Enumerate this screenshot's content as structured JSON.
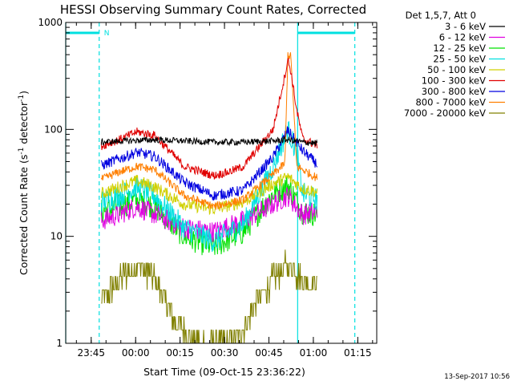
{
  "chart_data": {
    "type": "line",
    "title": "HESSI Observing Summary Count Rates, Corrected",
    "xlabel": "Start Time (09-Oct-15 23:36:22)",
    "ylabel": "Corrected Count Rate (s",
    "ylabel_sup1": "-1",
    "ylabel_mid": " detector",
    "ylabel_sup2": "-1",
    "ylabel_end": ")",
    "y_scale": "log",
    "ylim": [
      1,
      1000
    ],
    "xlim_minutes": [
      0,
      105
    ],
    "x_ticks": [
      {
        "label": "23:45",
        "minute": 8.6
      },
      {
        "label": "00:00",
        "minute": 23.6
      },
      {
        "label": "00:15",
        "minute": 38.6
      },
      {
        "label": "00:30",
        "minute": 53.6
      },
      {
        "label": "00:45",
        "minute": 68.6
      },
      {
        "label": "01:00",
        "minute": 83.6
      },
      {
        "label": "01:15",
        "minute": 98.6
      }
    ],
    "y_ticks": [
      {
        "label": "1",
        "value": 1
      },
      {
        "label": "10",
        "value": 10
      },
      {
        "label": "100",
        "value": 100
      },
      {
        "label": "1000",
        "value": 1000
      }
    ],
    "legend_header": "Det 1,5,7, Att 0",
    "legend_position": "right",
    "series": [
      {
        "name": "3 - 6 keV",
        "color": "#000000",
        "points": [
          [
            12,
            76
          ],
          [
            20,
            78
          ],
          [
            30,
            80
          ],
          [
            40,
            78
          ],
          [
            50,
            76
          ],
          [
            60,
            76
          ],
          [
            70,
            78
          ],
          [
            75,
            80
          ],
          [
            80,
            76
          ],
          [
            85,
            74
          ]
        ]
      },
      {
        "name": "6 - 12 keV",
        "color": "#e000e0",
        "points": [
          [
            12,
            14
          ],
          [
            18,
            16
          ],
          [
            24,
            19
          ],
          [
            30,
            16
          ],
          [
            40,
            12
          ],
          [
            50,
            11
          ],
          [
            60,
            14
          ],
          [
            70,
            20
          ],
          [
            75,
            24
          ],
          [
            80,
            16
          ],
          [
            85,
            17
          ]
        ]
      },
      {
        "name": "12 - 25 keV",
        "color": "#00e000",
        "points": [
          [
            12,
            17
          ],
          [
            18,
            19
          ],
          [
            24,
            22
          ],
          [
            30,
            19
          ],
          [
            40,
            10
          ],
          [
            50,
            8
          ],
          [
            60,
            11
          ],
          [
            70,
            25
          ],
          [
            75,
            30
          ],
          [
            80,
            17
          ],
          [
            85,
            16
          ]
        ]
      },
      {
        "name": "25 - 50 keV",
        "color": "#00e0e0",
        "points": [
          [
            12,
            21
          ],
          [
            18,
            24
          ],
          [
            24,
            29
          ],
          [
            30,
            24
          ],
          [
            40,
            12
          ],
          [
            50,
            9
          ],
          [
            60,
            13
          ],
          [
            70,
            45
          ],
          [
            75,
            100
          ],
          [
            78,
            60
          ],
          [
            80,
            25
          ],
          [
            85,
            22
          ]
        ]
      },
      {
        "name": "50 - 100 keV",
        "color": "#d0d000",
        "points": [
          [
            12,
            25
          ],
          [
            18,
            29
          ],
          [
            24,
            33
          ],
          [
            30,
            29
          ],
          [
            40,
            20
          ],
          [
            50,
            18
          ],
          [
            60,
            21
          ],
          [
            70,
            31
          ],
          [
            75,
            36
          ],
          [
            80,
            28
          ],
          [
            85,
            26
          ]
        ]
      },
      {
        "name": "100 - 300 keV",
        "color": "#e00000",
        "points": [
          [
            12,
            70
          ],
          [
            18,
            80
          ],
          [
            24,
            95
          ],
          [
            30,
            88
          ],
          [
            40,
            45
          ],
          [
            50,
            37
          ],
          [
            55,
            40
          ],
          [
            60,
            45
          ],
          [
            70,
            100
          ],
          [
            74,
            320
          ],
          [
            75,
            450
          ],
          [
            76,
            350
          ],
          [
            78,
            150
          ],
          [
            80,
            82
          ],
          [
            85,
            70
          ]
        ]
      },
      {
        "name": "300 - 800 keV",
        "color": "#0000e0",
        "points": [
          [
            12,
            46
          ],
          [
            18,
            53
          ],
          [
            24,
            61
          ],
          [
            30,
            56
          ],
          [
            40,
            32
          ],
          [
            50,
            24
          ],
          [
            60,
            27
          ],
          [
            70,
            55
          ],
          [
            75,
            98
          ],
          [
            80,
            63
          ],
          [
            85,
            47
          ]
        ]
      },
      {
        "name": "800 - 7000 keV",
        "color": "#ff7f00",
        "points": [
          [
            12,
            34
          ],
          [
            18,
            40
          ],
          [
            24,
            45
          ],
          [
            30,
            42
          ],
          [
            40,
            24
          ],
          [
            50,
            19
          ],
          [
            60,
            22
          ],
          [
            70,
            38
          ],
          [
            74,
            48
          ],
          [
            75,
            500
          ],
          [
            76,
            480
          ],
          [
            78,
            45
          ],
          [
            80,
            42
          ],
          [
            85,
            35
          ]
        ]
      },
      {
        "name": "7000 - 20000 keV",
        "color": "#808000",
        "points": [
          [
            12,
            2.5
          ],
          [
            18,
            4
          ],
          [
            24,
            5.5
          ],
          [
            30,
            4
          ],
          [
            35,
            2
          ],
          [
            40,
            1.3
          ],
          [
            45,
            1
          ],
          [
            50,
            1
          ],
          [
            55,
            1
          ],
          [
            60,
            1.4
          ],
          [
            65,
            2.5
          ],
          [
            70,
            4
          ],
          [
            75,
            5.5
          ],
          [
            80,
            4
          ],
          [
            85,
            3.5
          ]
        ]
      }
    ],
    "marker_label": "N",
    "timestamp": "13-Sep-2017 10:56"
  }
}
